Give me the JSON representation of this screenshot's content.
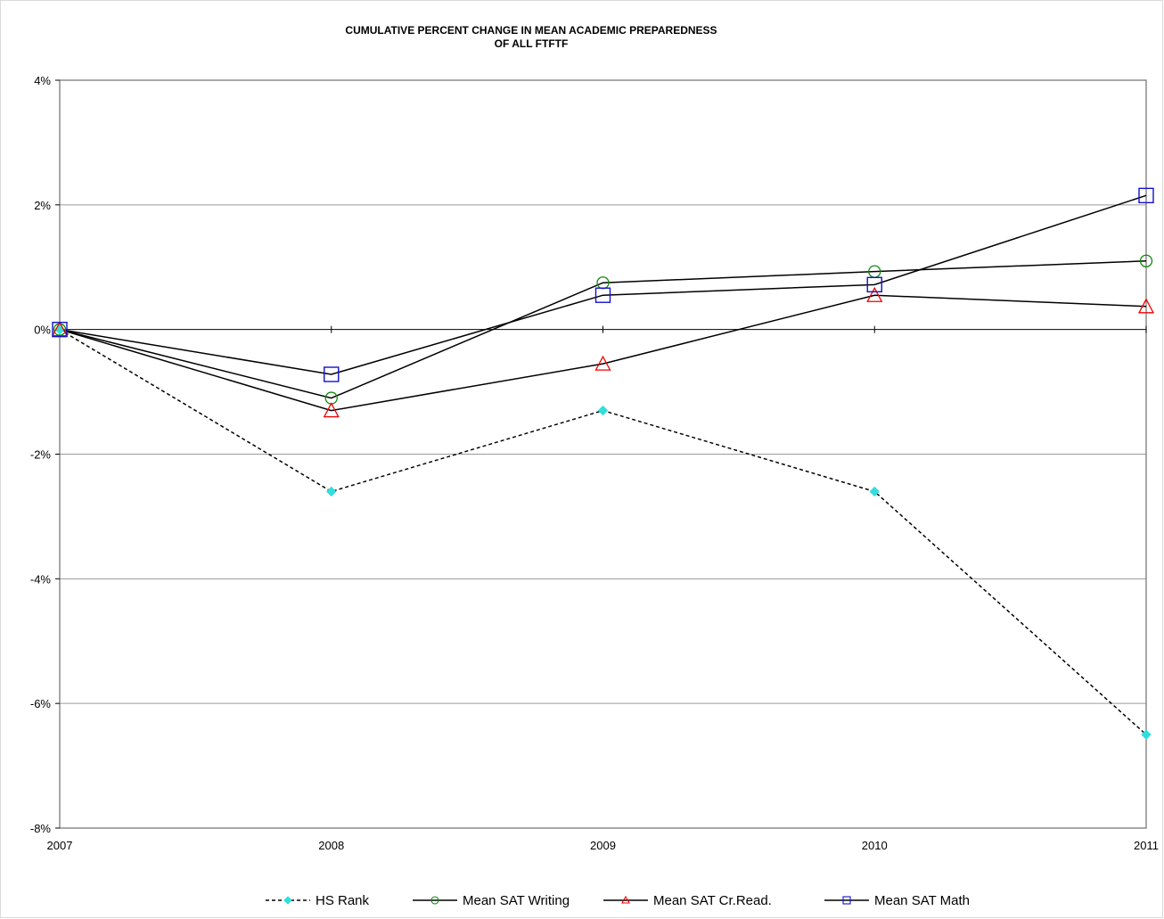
{
  "chart_data": {
    "type": "line",
    "title_lines": [
      "CUMULATIVE PERCENT CHANGE IN MEAN ACADEMIC PREPAREDNESS",
      "OF ALL FTFTF"
    ],
    "xlabel": "",
    "ylabel": "",
    "categories": [
      "2007",
      "2008",
      "2009",
      "2010",
      "2011"
    ],
    "ylim": [
      -8,
      4
    ],
    "yticks": [
      4,
      2,
      0,
      -2,
      -4,
      -6,
      -8
    ],
    "ytick_labels": [
      "4%",
      "2%",
      "0%",
      "-2%",
      "-4%",
      "-6%",
      "-8%"
    ],
    "grid": true,
    "legend_position": "bottom",
    "series": [
      {
        "name": "HS Rank",
        "values": [
          0,
          -2.6,
          -1.3,
          -2.6,
          -6.5
        ],
        "line_color": "#000000",
        "dashed": true,
        "marker": "diamond-filled",
        "marker_color": "#33dddd"
      },
      {
        "name": "Mean SAT Writing",
        "values": [
          0,
          -1.1,
          0.75,
          0.93,
          1.1
        ],
        "line_color": "#000000",
        "dashed": false,
        "marker": "circle",
        "marker_color": "#118811"
      },
      {
        "name": "Mean SAT Cr.Read.",
        "values": [
          0,
          -1.3,
          -0.55,
          0.55,
          0.37
        ],
        "line_color": "#000000",
        "dashed": false,
        "marker": "triangle",
        "marker_color": "#ee0000"
      },
      {
        "name": "Mean SAT Math",
        "values": [
          0,
          -0.72,
          0.55,
          0.72,
          2.15
        ],
        "line_color": "#000000",
        "dashed": false,
        "marker": "square",
        "marker_color": "#1111cc"
      }
    ]
  }
}
